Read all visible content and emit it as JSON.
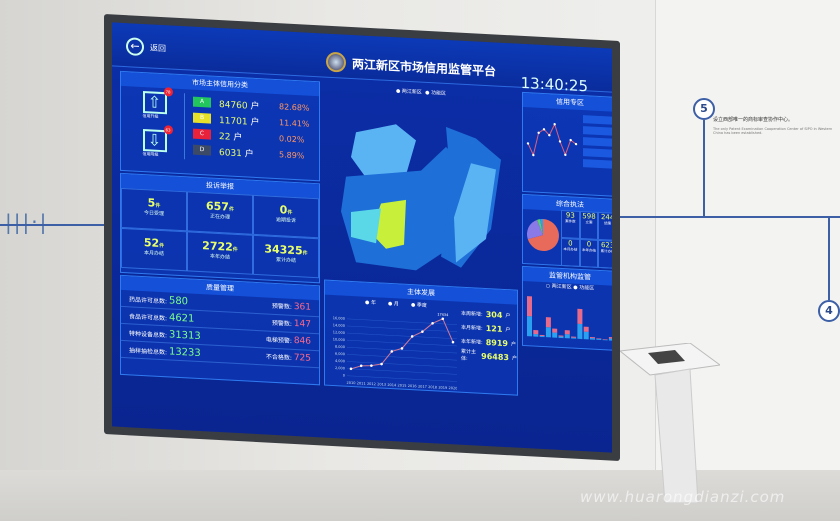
{
  "header": {
    "back_label": "返回",
    "title": "两江新区市场信用监管平台",
    "time": "13:40:25"
  },
  "credit_class": {
    "title": "市场主体信用分类",
    "up_label": "信用升级",
    "up_count": "78",
    "down_label": "信用降级",
    "down_count": "63",
    "levels": [
      {
        "grade": "A",
        "count": "84760",
        "unit": "户",
        "pct": "82.68%",
        "color": "#22c55e"
      },
      {
        "grade": "B",
        "count": "11701",
        "unit": "户",
        "pct": "11.41%",
        "color": "#e6e02a"
      },
      {
        "grade": "C",
        "count": "22",
        "unit": "户",
        "pct": "0.02%",
        "color": "#e8223a"
      },
      {
        "grade": "D",
        "count": "6031",
        "unit": "户",
        "pct": "5.89%",
        "color": "#3d4a66"
      }
    ]
  },
  "complaints": {
    "title": "投诉举报",
    "unit": "件",
    "cells": [
      {
        "value": "5",
        "label": "今日受理"
      },
      {
        "value": "657",
        "label": "正在办理"
      },
      {
        "value": "0",
        "label": "逾期投诉"
      },
      {
        "value": "52",
        "label": "本月办结"
      },
      {
        "value": "2722",
        "label": "本年办结"
      },
      {
        "value": "34325",
        "label": "累计办结"
      }
    ]
  },
  "quality": {
    "title": "质量管理",
    "rows": [
      {
        "label": "药品许可总数:",
        "value": "580",
        "warn_label": "预警数:",
        "warn_value": "361"
      },
      {
        "label": "食品许可总数:",
        "value": "4621",
        "warn_label": "预警数:",
        "warn_value": "147"
      },
      {
        "label": "特种设备总数:",
        "value": "31313",
        "warn_label": "电梯预警:",
        "warn_value": "846"
      },
      {
        "label": "抽样抽检总数:",
        "value": "13233",
        "warn_label": "不合格数:",
        "warn_value": "725"
      }
    ]
  },
  "map": {
    "legend": [
      "两江新区",
      "功能区"
    ],
    "highlight_color": "#c8f03a",
    "base_color": "#4aa8f0"
  },
  "development": {
    "title": "主体发展",
    "tabs": [
      "年",
      "月",
      "季度"
    ],
    "peak_label": "17434",
    "chart_data": {
      "type": "line",
      "x": [
        "2010",
        "2011",
        "2012",
        "2013",
        "2014",
        "2015",
        "2016",
        "2017",
        "2018",
        "2019",
        "2020"
      ],
      "values": [
        2000,
        3000,
        3200,
        3800,
        7500,
        8500,
        12000,
        13500,
        16000,
        17434,
        11000
      ],
      "yticks": [
        "0",
        "2,000",
        "4,000",
        "6,000",
        "8,000",
        "10,000",
        "12,000",
        "14,000",
        "16,000"
      ],
      "ylim": [
        0,
        18000
      ]
    },
    "stats": [
      {
        "label": "本周新增:",
        "value": "304",
        "unit": "户"
      },
      {
        "label": "本月新增:",
        "value": "121",
        "unit": "户"
      },
      {
        "label": "本年新增:",
        "value": "8919",
        "unit": "户"
      },
      {
        "label": "累计主体:",
        "value": "96483",
        "unit": "户"
      }
    ]
  },
  "credit_zone": {
    "title": "信用专区",
    "chart_data": {
      "type": "line",
      "values": [
        180,
        120,
        240,
        260,
        230,
        290,
        200,
        130,
        210,
        190
      ]
    }
  },
  "enforcement": {
    "title": "综合执法",
    "pie": [
      {
        "value": 70,
        "color": "#e86a5a"
      },
      {
        "value": 24,
        "color": "#8a7ae8"
      },
      {
        "value": 3,
        "color": "#5ad06a"
      },
      {
        "value": 3,
        "color": "#2aa0f0"
      }
    ],
    "cells": [
      {
        "value": "93",
        "label": "案件数"
      },
      {
        "value": "598",
        "label": "立案"
      },
      {
        "value": "244",
        "label": "结案"
      },
      {
        "value": "0",
        "label": "本月办结"
      },
      {
        "value": "0",
        "label": "本年办结"
      },
      {
        "value": "623",
        "label": "累计办结"
      }
    ]
  },
  "supervision": {
    "title": "监管机构监管",
    "legend": [
      "两江新区",
      "功能区"
    ],
    "chart_data": {
      "type": "bar",
      "series": [
        {
          "color": "#2aa0f0",
          "values": [
            40,
            5,
            2,
            20,
            10,
            3,
            8,
            2,
            30,
            15,
            3,
            2,
            1,
            4
          ]
        },
        {
          "color": "#e86a8a",
          "values": [
            40,
            8,
            2,
            20,
            8,
            2,
            8,
            2,
            30,
            10,
            2,
            1,
            1,
            3
          ]
        }
      ]
    }
  },
  "wall": {
    "step_top": "5",
    "step_bottom": "4",
    "caption": "设立西部唯一的商标审查协作中心。",
    "caption_en": "The only Patent Examination Cooperation Center of SIPO in Western China has been established."
  },
  "watermark": "www.huarongdianzi.com"
}
